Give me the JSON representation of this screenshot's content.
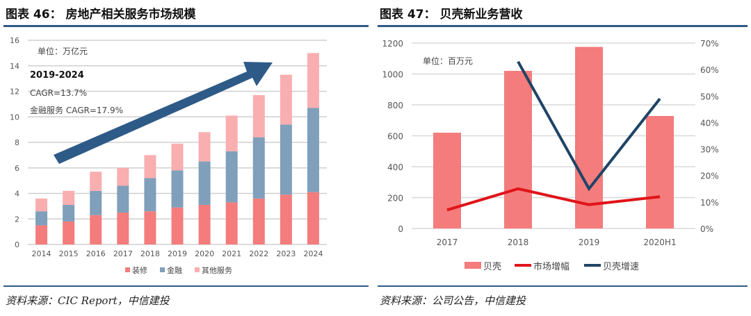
{
  "left": {
    "title": "图表 46：  房地产相关服务市场规模",
    "source": "资料来源：CIC Report，中信建投"
  },
  "right": {
    "title": "图表 47：  贝壳新业务营收",
    "source": "资料来源：公司公告，中信建投"
  },
  "chart_data": [
    {
      "type": "bar",
      "stacked": true,
      "categories": [
        "2014",
        "2015",
        "2016",
        "2017",
        "2018",
        "2019",
        "2020",
        "2021",
        "2022",
        "2023",
        "2024"
      ],
      "series": [
        {
          "name": "装修",
          "color": "#f47c7c",
          "values": [
            1.5,
            1.8,
            2.3,
            2.5,
            2.6,
            2.9,
            3.1,
            3.3,
            3.6,
            3.9,
            4.1
          ]
        },
        {
          "name": "金融",
          "color": "#7f9fba",
          "values": [
            1.1,
            1.3,
            1.9,
            2.1,
            2.6,
            2.9,
            3.4,
            4.0,
            4.8,
            5.5,
            6.6
          ]
        },
        {
          "name": "其他服务",
          "color": "#f9aeb0",
          "values": [
            1.0,
            1.1,
            1.5,
            1.4,
            1.8,
            2.1,
            2.3,
            2.8,
            3.3,
            3.9,
            4.3
          ]
        }
      ],
      "ylim": [
        0,
        16
      ],
      "yticks": [
        0,
        2,
        4,
        6,
        8,
        10,
        12,
        14,
        16
      ],
      "grid": true,
      "legend": "bottom",
      "annotations": [
        "单位：万亿元",
        "2019-2024",
        "CAGR=13.7%",
        "金融服务 CAGR=17.9%"
      ],
      "arrow_color": "#2e5a87"
    },
    {
      "type": "bar+line",
      "categories": [
        "2017",
        "2018",
        "2019",
        "2020H1"
      ],
      "series": [
        {
          "name": "贝壳",
          "type": "bar",
          "axis": "left",
          "color": "#f47c7c",
          "values": [
            620,
            1020,
            1175,
            728
          ]
        },
        {
          "name": "市场增幅",
          "type": "line",
          "axis": "right",
          "color": "#e0141a",
          "values": [
            7,
            15,
            9,
            12
          ]
        },
        {
          "name": "贝壳增速",
          "type": "line",
          "axis": "right",
          "color": "#1f4466",
          "values": [
            null,
            63,
            15,
            49
          ]
        }
      ],
      "ylim": [
        0,
        1200
      ],
      "yticks": [
        0,
        200,
        400,
        600,
        800,
        1000,
        1200
      ],
      "y2lim": [
        0,
        70
      ],
      "y2ticks": [
        "0%",
        "10%",
        "20%",
        "30%",
        "40%",
        "50%",
        "60%",
        "70%"
      ],
      "grid": true,
      "legend": "bottom",
      "annotations": [
        "单位：百万元"
      ]
    }
  ]
}
